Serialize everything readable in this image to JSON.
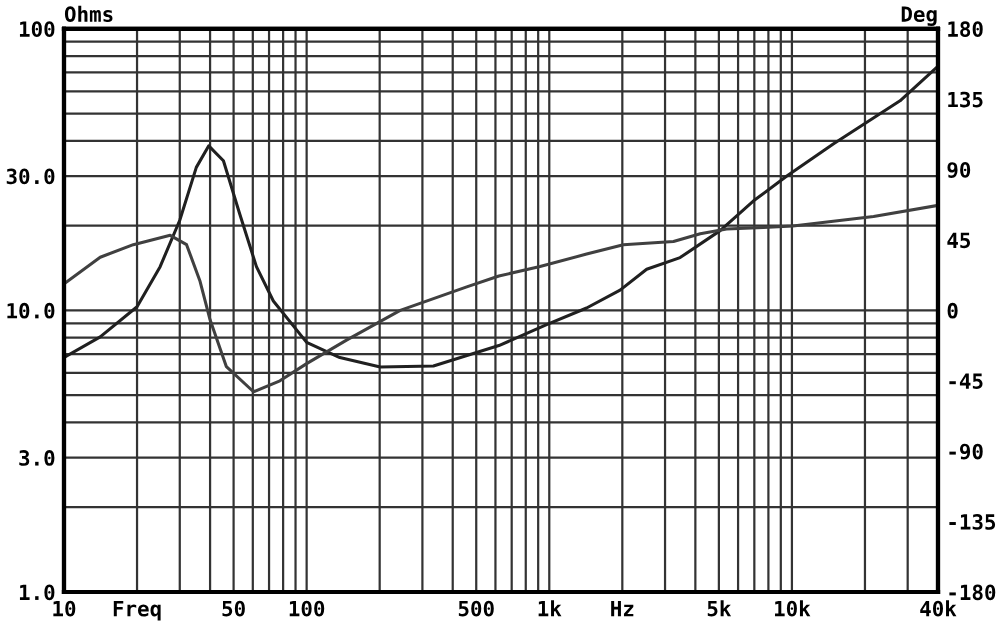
{
  "chart_data": {
    "type": "line",
    "ylabel": "Ohms",
    "y2label": "Deg",
    "log": "xy",
    "grid": true,
    "marker": "none",
    "line_style": "solid",
    "xlim": [
      10,
      40000
    ],
    "ylim": [
      1,
      100
    ],
    "y2lim": [
      -180,
      180
    ],
    "xticks": [
      10,
      {
        "value": 20,
        "label": "Freq"
      },
      {
        "value": 30,
        "label": null
      },
      {
        "value": 40,
        "label": null
      },
      50,
      {
        "value": 60,
        "label": null
      },
      {
        "value": 70,
        "label": null
      },
      {
        "value": 80,
        "label": null
      },
      {
        "value": 90,
        "label": null
      },
      100,
      {
        "value": 200,
        "label": null
      },
      {
        "value": 300,
        "label": null
      },
      {
        "value": 400,
        "label": null
      },
      500,
      {
        "value": 600,
        "label": null
      },
      {
        "value": 700,
        "label": null
      },
      {
        "value": 800,
        "label": null
      },
      {
        "value": 900,
        "label": null
      },
      {
        "value": 1000,
        "label": "1k"
      },
      {
        "value": 2000,
        "label": "Hz"
      },
      {
        "value": 3000,
        "label": null
      },
      {
        "value": 4000,
        "label": null
      },
      {
        "value": 5000,
        "label": "5k"
      },
      {
        "value": 6000,
        "label": null
      },
      {
        "value": 7000,
        "label": null
      },
      {
        "value": 8000,
        "label": null
      },
      {
        "value": 9000,
        "label": null
      },
      {
        "value": 10000,
        "label": "10k"
      },
      {
        "value": 20000,
        "label": null
      },
      {
        "value": 30000,
        "label": null
      },
      {
        "value": 40000,
        "label": "40k"
      }
    ],
    "yticks": [
      {
        "value": 1,
        "label": "1.0"
      },
      {
        "value": 2,
        "label": null
      },
      {
        "value": 3,
        "label": "3.0"
      },
      {
        "value": 4,
        "label": null
      },
      {
        "value": 5,
        "label": null
      },
      {
        "value": 6,
        "label": null
      },
      {
        "value": 7,
        "label": null
      },
      {
        "value": 8,
        "label": null
      },
      {
        "value": 9,
        "label": null
      },
      {
        "value": 10,
        "label": "10.0"
      },
      {
        "value": 20,
        "label": null
      },
      {
        "value": 30,
        "label": "30.0"
      },
      {
        "value": 40,
        "label": null
      },
      {
        "value": 50,
        "label": null
      },
      {
        "value": 60,
        "label": null
      },
      {
        "value": 70,
        "label": null
      },
      {
        "value": 80,
        "label": null
      },
      {
        "value": 90,
        "label": null
      },
      100
    ],
    "y2ticks": [
      -180,
      -135,
      -90,
      -45,
      0,
      45,
      90,
      135,
      180
    ],
    "series": [
      {
        "color": "#202020",
        "x": [
          10,
          14.1,
          20,
          24.9,
          30,
          35.1,
          39.5,
          45.4,
          53,
          62.1,
          72.9,
          100,
          137,
          201,
          333,
          620,
          975,
          1425,
          1958,
          2520,
          3460,
          5060,
          6950,
          9530,
          14800,
          27900,
          39500
        ],
        "values": [
          6.8,
          8.05,
          10.3,
          14.3,
          20.9,
          32.2,
          38.4,
          34,
          22,
          14.3,
          10.8,
          7.7,
          6.8,
          6.3,
          6.35,
          7.5,
          8.9,
          10.2,
          11.8,
          14,
          15.4,
          19.2,
          24.5,
          30,
          39,
          55.5,
          72.9
        ]
      },
      {
        "color": "#404040",
        "axis": "y2",
        "x": [
          10,
          14.1,
          19.3,
          27.4,
          32,
          36.3,
          40,
          46.7,
          60.4,
          77.6,
          100,
          146,
          243,
          457,
          620,
          916,
          1425,
          2020,
          3250,
          4190,
          5380,
          7640,
          10100,
          21700,
          39500
        ],
        "values": [
          17,
          34,
          42,
          48,
          42,
          19,
          -6,
          -36,
          -52,
          -45,
          -34,
          -19,
          0,
          15,
          22,
          28,
          36,
          42,
          44,
          49,
          52,
          53,
          54,
          60,
          67
        ]
      }
    ]
  }
}
